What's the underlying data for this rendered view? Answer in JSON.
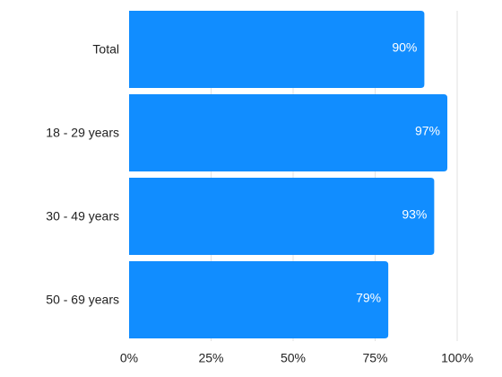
{
  "chart_data": {
    "type": "bar",
    "orientation": "horizontal",
    "categories": [
      "Total",
      "18 - 29 years",
      "30 - 49 years",
      "50 - 69 years"
    ],
    "values": [
      90,
      97,
      93,
      79
    ],
    "value_labels": [
      "90%",
      "97%",
      "93%",
      "79%"
    ],
    "x_ticks": [
      "0%",
      "25%",
      "50%",
      "75%",
      "100%"
    ],
    "xlim": [
      0,
      100
    ],
    "title": "",
    "xlabel": "",
    "ylabel": "",
    "grid": "vertical",
    "legend": "none",
    "bar_color": "#118dff",
    "grid_color": "#e2e2e2"
  }
}
